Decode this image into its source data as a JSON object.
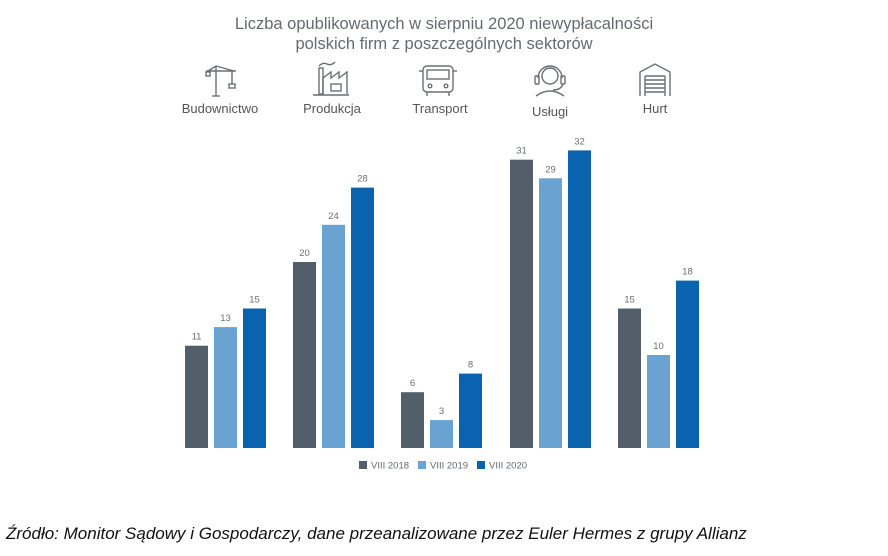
{
  "chart_data": {
    "type": "bar",
    "title": "Liczba opublikowanych w sierpniu 2020 niewypłacalności polskich firm z poszczególnych sektorów",
    "title_lines": [
      "Liczba opublikowanych w sierpniu 2020 niewypłacalności",
      "polskich firm z poszczególnych sektorów"
    ],
    "categories": [
      "Budownictwo",
      "Produkcja",
      "Transport",
      "Usługi",
      "Hurt"
    ],
    "category_icons": [
      "crane-icon",
      "factory-icon",
      "bus-icon",
      "headset-icon",
      "warehouse-icon"
    ],
    "series": [
      {
        "name": "VIII 2018",
        "color": "#525f6b",
        "values": [
          11,
          20,
          6,
          31,
          15
        ]
      },
      {
        "name": "VIII 2019",
        "color": "#6aa3d1",
        "values": [
          13,
          24,
          3,
          29,
          10
        ]
      },
      {
        "name": "VIII 2020",
        "color": "#0a63ae",
        "values": [
          15,
          28,
          8,
          32,
          18
        ]
      }
    ],
    "xlabel": "",
    "ylabel": "",
    "ylim": [
      0,
      32
    ],
    "grid": false,
    "legend_position": "bottom-center",
    "data_labels": true
  },
  "source": "Źródło: Monitor Sądowy i Gospodarczy, dane przeanalizowane przez Euler Hermes z grupy Allianz",
  "colors": {
    "title": "#666a70",
    "label": "#555555",
    "icon": "#6b6f75",
    "value_label": "#6b6f75"
  }
}
